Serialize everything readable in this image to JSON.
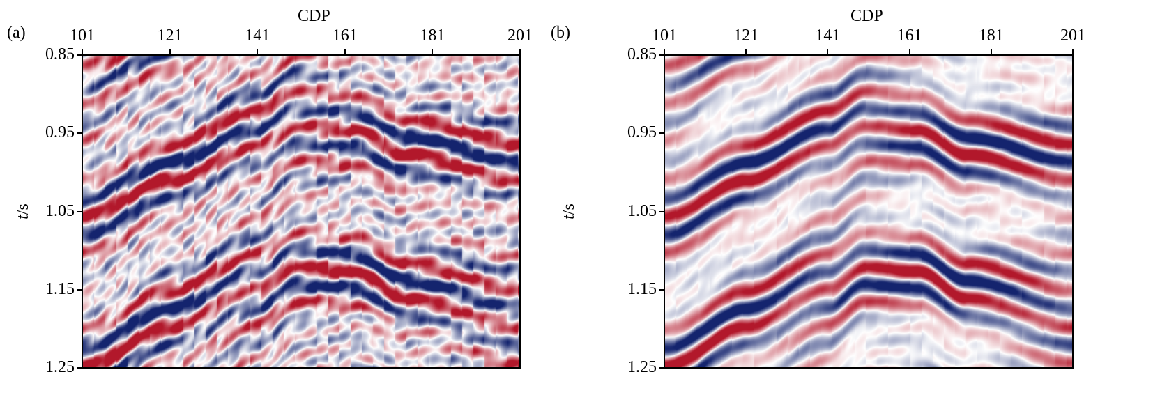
{
  "chart_data": [
    {
      "type": "heatmap",
      "panel_label": "(a)",
      "title": "",
      "xlabel": "CDP",
      "ylabel_italic": "t",
      "ylabel_unit": "/s",
      "xlim": [
        101,
        201
      ],
      "ylim": [
        0.85,
        1.25
      ],
      "xticks": [
        "101",
        "121",
        "141",
        "161",
        "181",
        "201"
      ],
      "yticks": [
        "0.85",
        "0.95",
        "1.05",
        "1.15",
        "1.25"
      ],
      "colormap": [
        "#14246e",
        "#ffffff",
        "#b2182b"
      ],
      "noise_level": 0.55,
      "description_values": "seismic amplitude section, noisy"
    },
    {
      "type": "heatmap",
      "panel_label": "(b)",
      "title": "",
      "xlabel": "CDP",
      "ylabel_italic": "t",
      "ylabel_unit": "/s",
      "xlim": [
        101,
        201
      ],
      "ylim": [
        0.85,
        1.25
      ],
      "xticks": [
        "101",
        "121",
        "141",
        "161",
        "181",
        "201"
      ],
      "yticks": [
        "0.85",
        "0.95",
        "1.05",
        "1.15",
        "1.25"
      ],
      "colormap": [
        "#14246e",
        "#ffffff",
        "#b2182b"
      ],
      "noise_level": 0.12,
      "description_values": "seismic amplitude section, denoised"
    }
  ]
}
